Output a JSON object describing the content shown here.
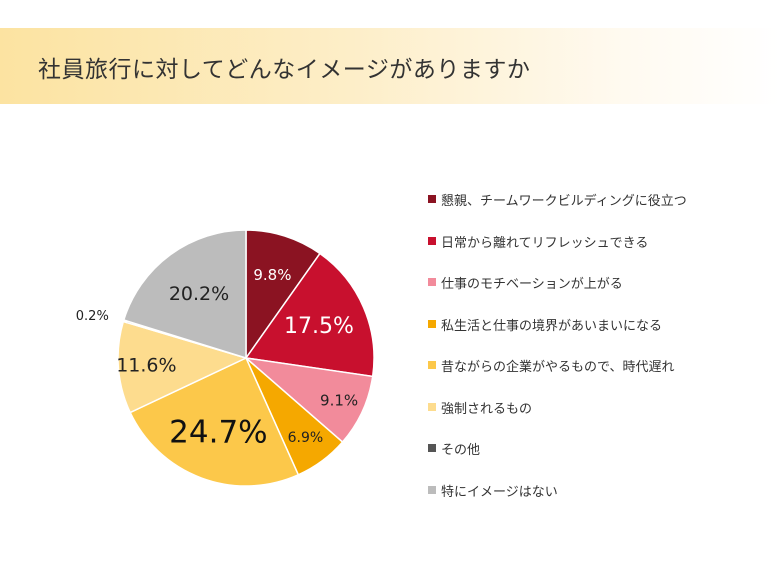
{
  "page": {
    "title": "社員旅行に対してどんなイメージがありますか"
  },
  "chart_data": {
    "type": "pie",
    "title": "",
    "start_angle_deg": 0,
    "direction": "clockwise",
    "slices": [
      {
        "label": "懇親、チームワークビルディングに役立つ",
        "value": 9.8,
        "display": "9.8%",
        "color": "#8b1322",
        "label_color": "#ffffff",
        "label_size": 15
      },
      {
        "label": "日常から離れてリフレッシュできる",
        "value": 17.5,
        "display": "17.5%",
        "color": "#c8102e",
        "label_color": "#ffffff",
        "label_size": 22
      },
      {
        "label": "仕事のモチベーションが上がる",
        "value": 9.1,
        "display": "9.1%",
        "color": "#f28b9b",
        "label_color": "#222222",
        "label_size": 15
      },
      {
        "label": "私生活と仕事の境界があいまいになる",
        "value": 6.9,
        "display": "6.9%",
        "color": "#f5a800",
        "label_color": "#222222",
        "label_size": 14
      },
      {
        "label": "昔ながらの企業がやるもので、時代遅れ",
        "value": 24.7,
        "display": "24.7%",
        "color": "#fcc84a",
        "label_color": "#111111",
        "label_size": 31
      },
      {
        "label": "強制されるもの",
        "value": 11.6,
        "display": "11.6%",
        "color": "#fddc8e",
        "label_color": "#222222",
        "label_size": 19
      },
      {
        "label": "その他",
        "value": 0.2,
        "display": "0.2%",
        "color": "#555555",
        "label_color": "#222222",
        "label_size": 13
      },
      {
        "label": "特にイメージはない",
        "value": 20.2,
        "display": "20.2%",
        "color": "#bcbcbc",
        "label_color": "#222222",
        "label_size": 19
      }
    ]
  }
}
